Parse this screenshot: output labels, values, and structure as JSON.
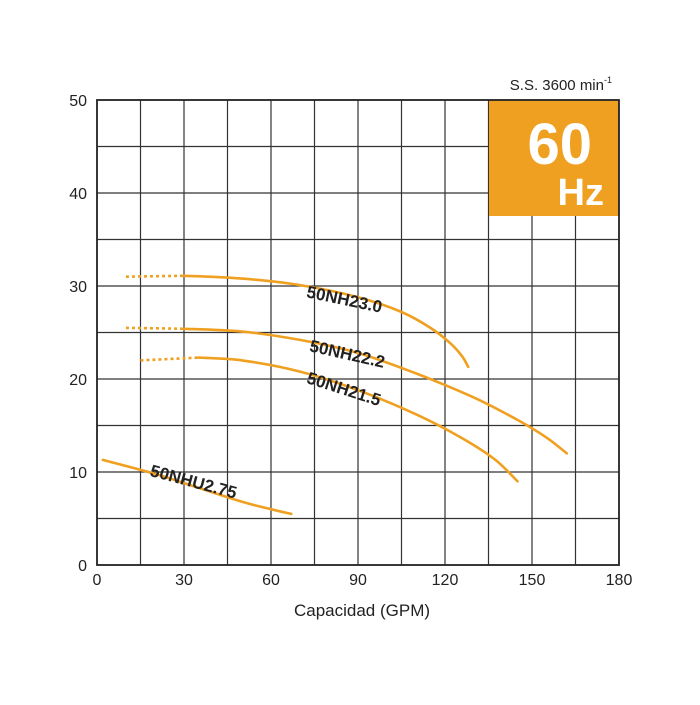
{
  "chart_data": {
    "type": "line",
    "title": "",
    "xlabel": "Capacidad (GPM)",
    "ylabel": "",
    "xlim": [
      0,
      180
    ],
    "ylim": [
      0,
      50
    ],
    "x_ticks": [
      0,
      30,
      60,
      90,
      120,
      150,
      180
    ],
    "x_tick_labels": [
      "0",
      "30",
      "60",
      "90",
      "120",
      "150",
      "180"
    ],
    "y_ticks": [
      0,
      10,
      20,
      30,
      40,
      50
    ],
    "y_tick_labels": [
      "0",
      "10",
      "20",
      "30",
      "40",
      "50"
    ],
    "x_grid_step": 15,
    "y_grid_step": 5,
    "grid": true,
    "speed_label": "S.S. 3600 min",
    "speed_label_sup": "-1",
    "badge": {
      "value": "60",
      "unit": "Hz",
      "color": "#f0a020"
    },
    "curve_color": "#f0a020",
    "series": [
      {
        "name": "50NH23.0",
        "dotted": [
          [
            10,
            31
          ],
          [
            30,
            31.1
          ]
        ],
        "points": [
          [
            30,
            31.1
          ],
          [
            50,
            30.8
          ],
          [
            70,
            30.1
          ],
          [
            90,
            28.8
          ],
          [
            105,
            27.2
          ],
          [
            115,
            25.5
          ],
          [
            122,
            23.8
          ],
          [
            126,
            22.4
          ],
          [
            128,
            21.3
          ]
        ],
        "label_at": [
          72,
          28.8
        ]
      },
      {
        "name": "50NH22.2",
        "dotted": [
          [
            10,
            25.5
          ],
          [
            30,
            25.4
          ]
        ],
        "points": [
          [
            30,
            25.4
          ],
          [
            50,
            25.1
          ],
          [
            70,
            24.2
          ],
          [
            90,
            22.8
          ],
          [
            110,
            20.6
          ],
          [
            130,
            18.0
          ],
          [
            145,
            15.6
          ],
          [
            155,
            13.7
          ],
          [
            162,
            12.0
          ]
        ],
        "label_at": [
          73,
          23.0
        ]
      },
      {
        "name": "50NH21.5",
        "dotted": [
          [
            15,
            22.0
          ],
          [
            35,
            22.3
          ]
        ],
        "points": [
          [
            35,
            22.3
          ],
          [
            50,
            22.0
          ],
          [
            70,
            20.8
          ],
          [
            90,
            18.8
          ],
          [
            110,
            16.2
          ],
          [
            125,
            13.8
          ],
          [
            137,
            11.4
          ],
          [
            145,
            9.0
          ]
        ],
        "label_at": [
          72,
          19.6
        ]
      },
      {
        "name": "50NHU2.75",
        "dotted": [],
        "points": [
          [
            2,
            11.3
          ],
          [
            20,
            9.8
          ],
          [
            35,
            8.3
          ],
          [
            50,
            6.8
          ],
          [
            60,
            6.0
          ],
          [
            67,
            5.5
          ]
        ],
        "label_at": [
          18,
          9.6
        ]
      }
    ]
  }
}
